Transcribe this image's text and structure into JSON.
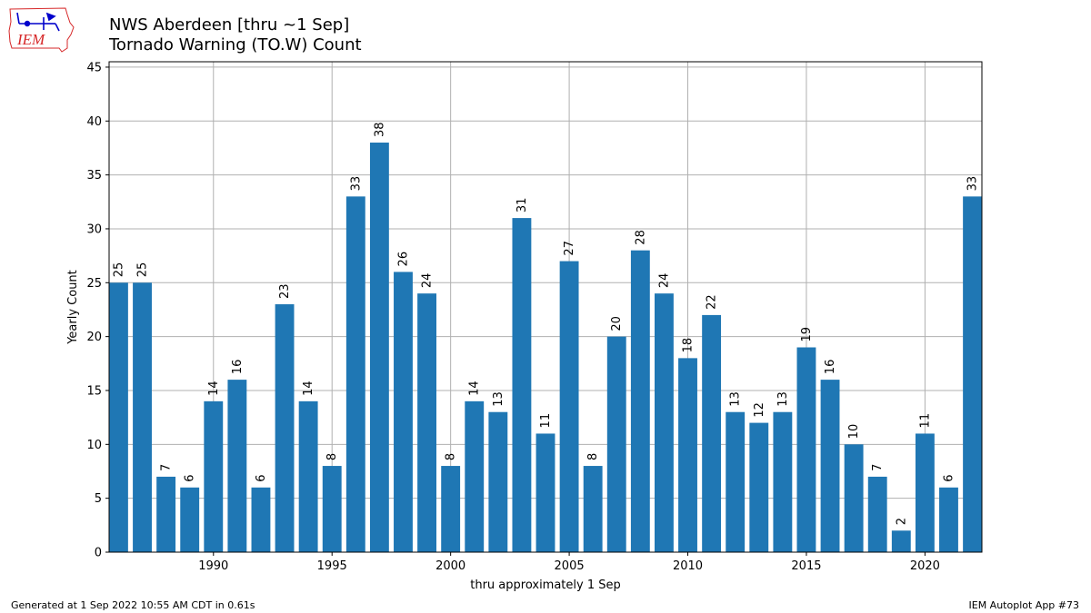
{
  "header": {
    "title_line1": "NWS Aberdeen [thru ~1 Sep]",
    "title_line2": "Tornado Warning (TO.W) Count"
  },
  "logo": {
    "text": "IEM",
    "icon": "iem-iowa-map-logo"
  },
  "footer": {
    "generated": "Generated at 1 Sep 2022 10:55 AM CDT in 0.61s",
    "app": "IEM Autoplot App #73"
  },
  "colors": {
    "bar": "#1f77b4",
    "grid": "#b0b0b0",
    "logo_red": "#d62728",
    "logo_blue": "#0000cc"
  },
  "chart_data": {
    "type": "bar",
    "x": [
      1986,
      1987,
      1988,
      1989,
      1990,
      1991,
      1992,
      1993,
      1994,
      1995,
      1996,
      1997,
      1998,
      1999,
      2000,
      2001,
      2002,
      2003,
      2004,
      2005,
      2006,
      2007,
      2008,
      2009,
      2010,
      2011,
      2012,
      2013,
      2014,
      2015,
      2016,
      2017,
      2018,
      2019,
      2020,
      2021,
      2022
    ],
    "values": [
      25,
      25,
      7,
      6,
      14,
      16,
      6,
      23,
      14,
      8,
      33,
      38,
      26,
      24,
      8,
      14,
      13,
      31,
      11,
      27,
      8,
      20,
      28,
      24,
      18,
      22,
      13,
      12,
      13,
      19,
      16,
      10,
      7,
      2,
      11,
      6,
      33
    ],
    "data_labels": [
      "25",
      "25",
      "7",
      "6",
      "14",
      "16",
      "6",
      "23",
      "14",
      "8",
      "33",
      "38",
      "26",
      "24",
      "8",
      "14",
      "13",
      "31",
      "11",
      "27",
      "8",
      "20",
      "28",
      "24",
      "18",
      "22",
      "13",
      "12",
      "13",
      "19",
      "16",
      "10",
      "7",
      "2",
      "11",
      "6",
      "33"
    ],
    "xlabel": "thru approximately 1 Sep",
    "ylabel": "Yearly Count",
    "xlim": [
      1985.6,
      2022.4
    ],
    "ylim": [
      0,
      45.5
    ],
    "xticks": [
      1990,
      1995,
      2000,
      2005,
      2010,
      2015,
      2020
    ],
    "xtick_labels": [
      "1990",
      "1995",
      "2000",
      "2005",
      "2010",
      "2015",
      "2020"
    ],
    "yticks": [
      0,
      5,
      10,
      15,
      20,
      25,
      30,
      35,
      40,
      45
    ],
    "ytick_labels": [
      "0",
      "5",
      "10",
      "15",
      "20",
      "25",
      "30",
      "35",
      "40",
      "45"
    ],
    "bar_width": 0.8,
    "grid": true,
    "legend": false
  }
}
